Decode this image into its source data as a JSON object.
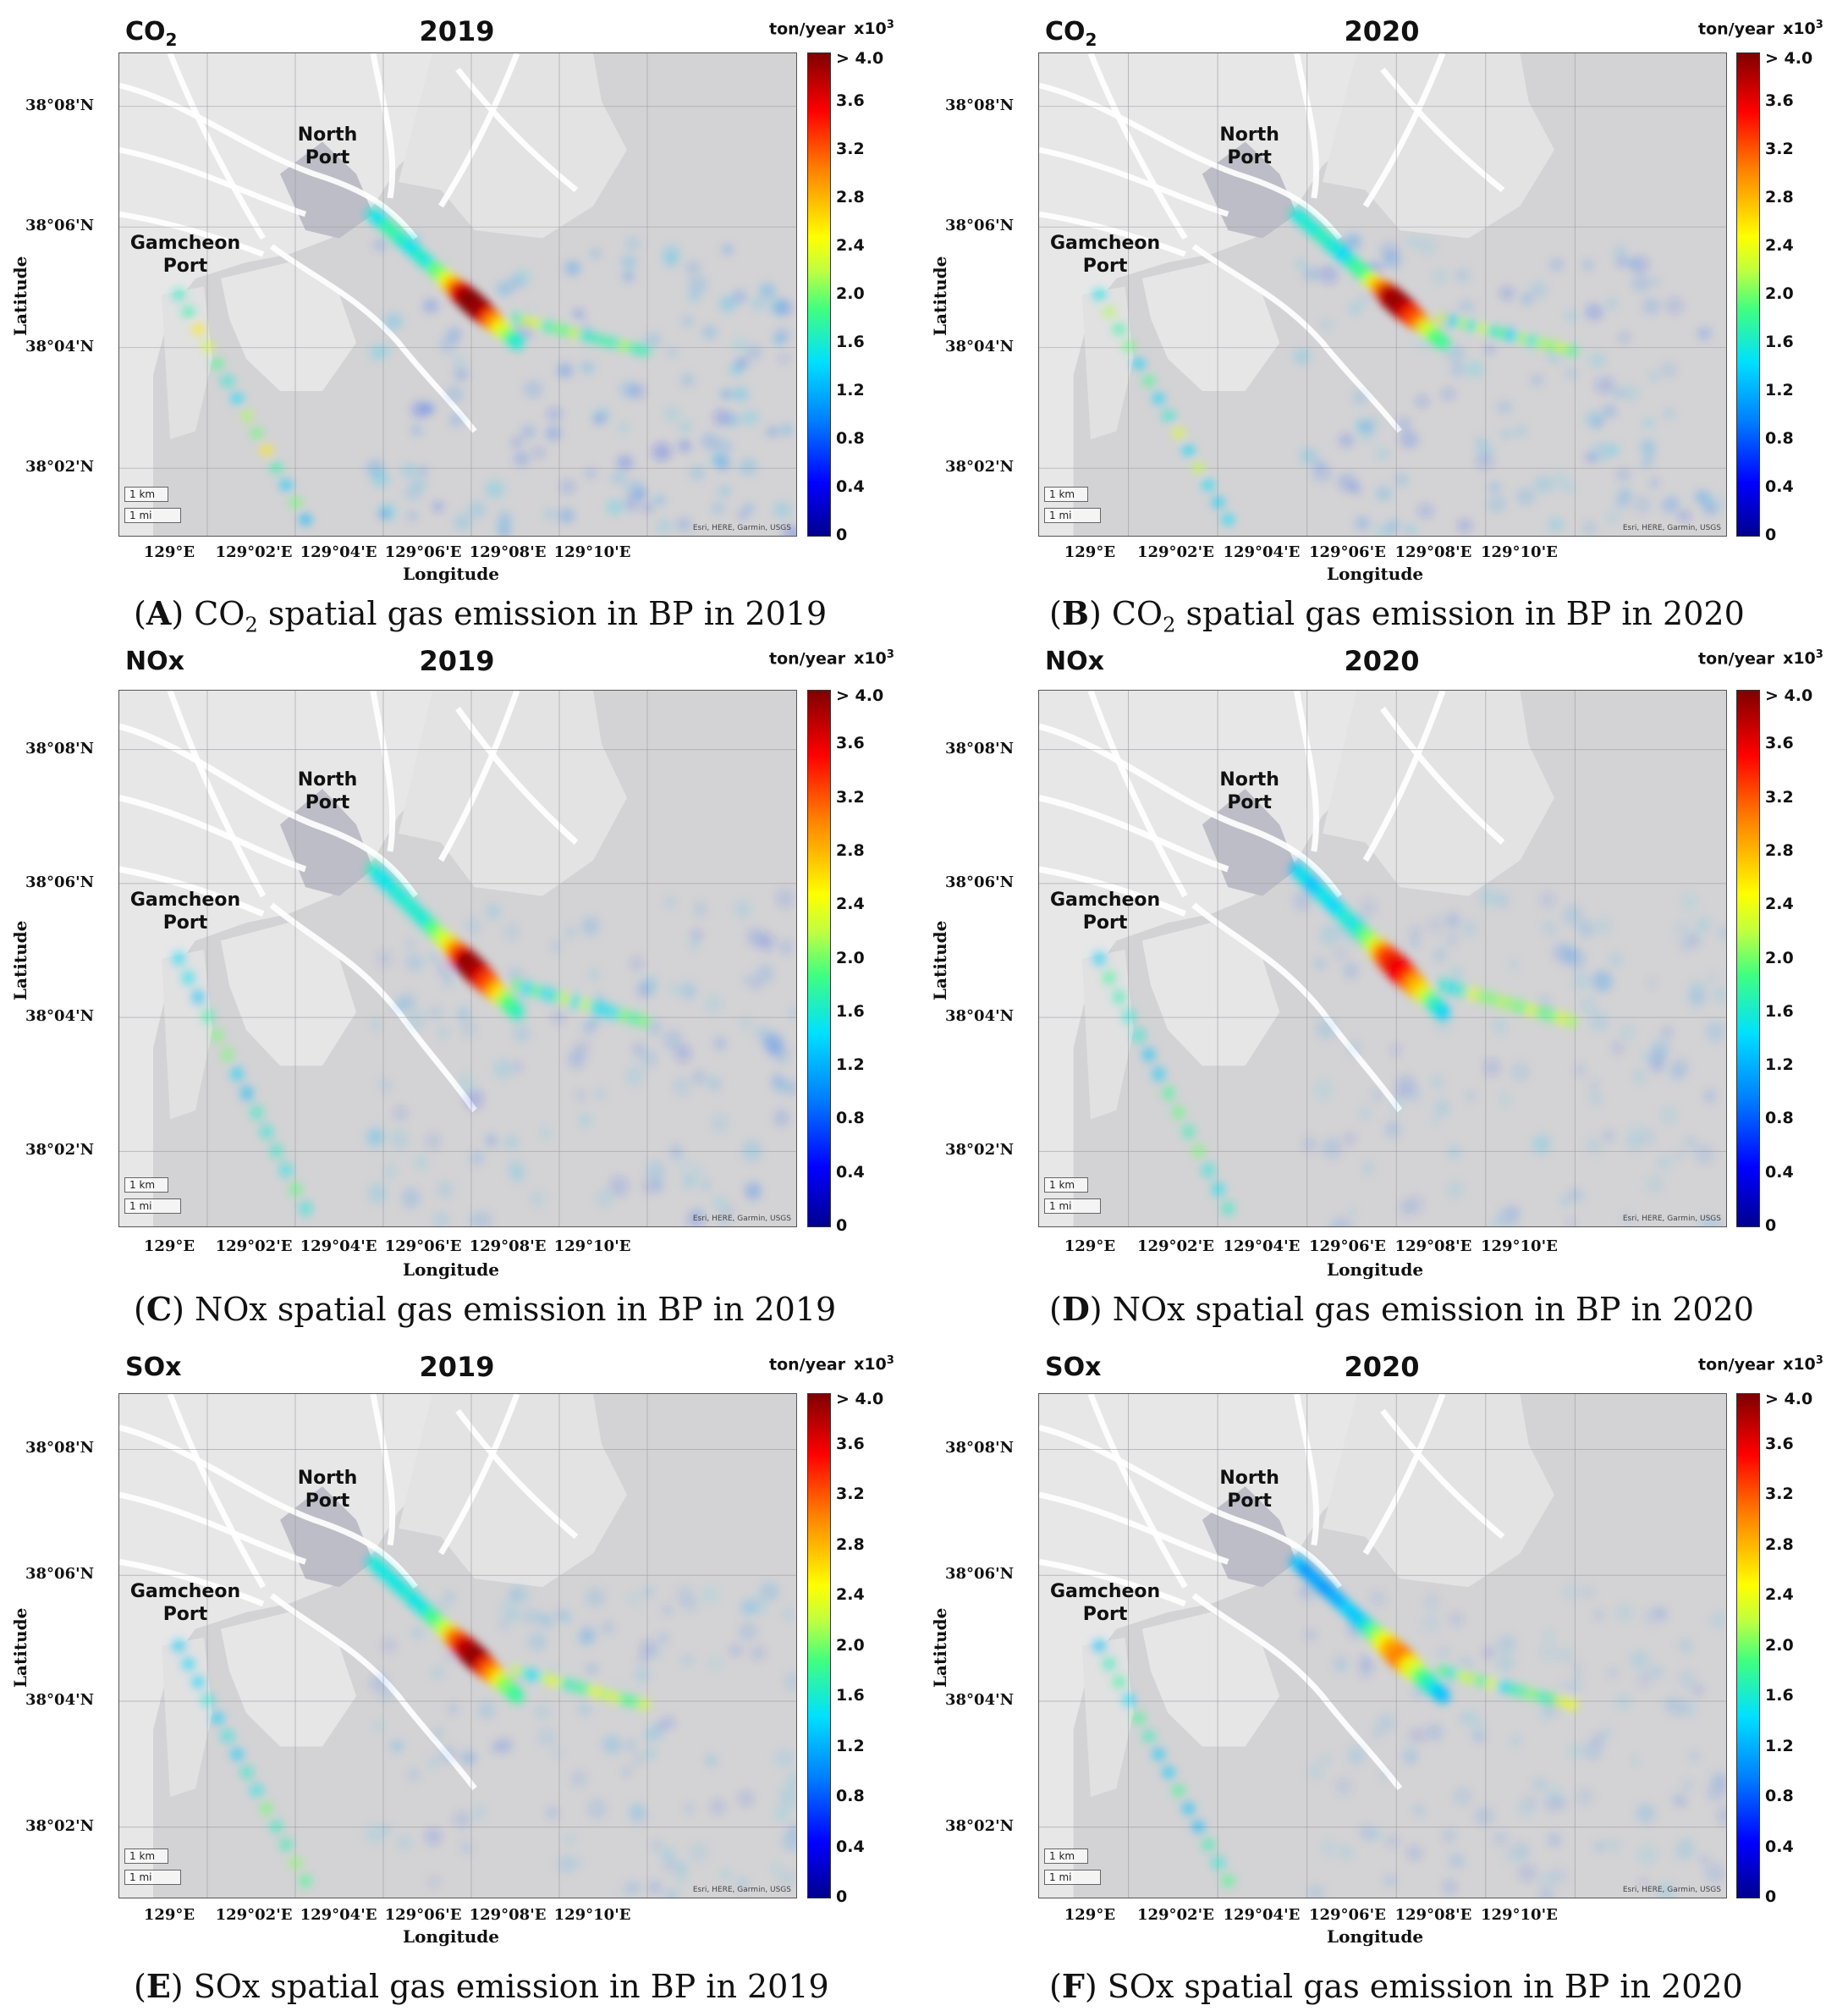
{
  "colorbar": {
    "unit": "ton/year",
    "multiplier": "x10",
    "exponent": "3",
    "ticks": [
      "> 4.0",
      "3.6",
      "3.2",
      "2.8",
      "2.4",
      "2.0",
      "1.6",
      "1.2",
      "0.8",
      "0.4",
      "0"
    ]
  },
  "axes": {
    "xlabel": "Longitude",
    "ylabel": "Latitude",
    "lat_ticks": [
      "38°08'N",
      "38°06'N",
      "38°04'N",
      "38°02'N"
    ],
    "lon_ticks": [
      "129°E",
      "129°02'E",
      "129°04'E",
      "129°06'E",
      "129°08'E",
      "129°10'E"
    ]
  },
  "map": {
    "north_port": [
      "North",
      "Port"
    ],
    "gamcheon_port": [
      "Gamcheon",
      "Port"
    ],
    "scale_km": "1 km",
    "scale_mi": "1 mi",
    "attribution": "Esri, HERE, Garmin, USGS"
  },
  "panels": [
    {
      "gas": "CO",
      "gas_sub": "2",
      "year": "2019",
      "caption_letter": "A",
      "caption_text": " CO",
      "caption_sub": "2",
      "caption_rest": " spatial gas emission in BP in 2019",
      "hotspot_intensity": 1.0,
      "spread": 0.9
    },
    {
      "gas": "CO",
      "gas_sub": "2",
      "year": "2020",
      "caption_letter": "B",
      "caption_text": " CO",
      "caption_sub": "2",
      "caption_rest": " spatial gas emission in BP in 2020",
      "hotspot_intensity": 0.95,
      "spread": 0.7
    },
    {
      "gas": "NOx",
      "gas_sub": "",
      "year": "2019",
      "caption_letter": "C",
      "caption_text": " NOx spatial gas emission in BP in 2019",
      "caption_sub": "",
      "caption_rest": "",
      "hotspot_intensity": 0.95,
      "spread": 0.6
    },
    {
      "gas": "NOx",
      "gas_sub": "",
      "year": "2020",
      "caption_letter": "D",
      "caption_text": " NOx spatial gas emission in BP in 2020",
      "caption_sub": "",
      "caption_rest": "",
      "hotspot_intensity": 0.85,
      "spread": 0.5
    },
    {
      "gas": "SOx",
      "gas_sub": "",
      "year": "2019",
      "caption_letter": "E",
      "caption_text": " SOx spatial gas emission in BP in 2019",
      "caption_sub": "",
      "caption_rest": "",
      "hotspot_intensity": 0.95,
      "spread": 0.55
    },
    {
      "gas": "SOx",
      "gas_sub": "",
      "year": "2020",
      "caption_letter": "F",
      "caption_text": " SOx spatial gas emission in BP in 2020",
      "caption_sub": "",
      "caption_rest": "",
      "hotspot_intensity": 0.7,
      "spread": 0.45
    }
  ]
}
